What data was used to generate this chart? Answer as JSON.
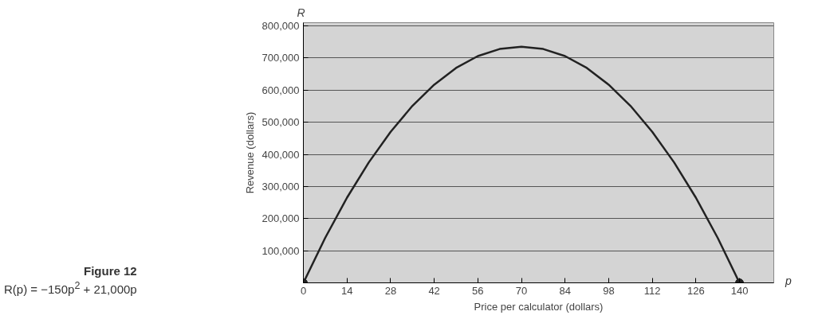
{
  "chart_data": {
    "type": "line",
    "xlabel": "Price per calculator (dollars)",
    "ylabel": "Revenue (dollars)",
    "annotations": [
      "R",
      "p",
      "Figure 12",
      "R(p) = −150p$^{2}$ + 21,000p"
    ],
    "x": [
      0,
      7,
      14,
      21,
      28,
      35,
      42,
      49,
      56,
      63,
      70,
      77,
      84,
      91,
      98,
      105,
      112,
      119,
      126,
      133,
      140
    ],
    "series": [
      {
        "color": "#222222",
        "marker": "none",
        "values": [
          0,
          140000,
          265000,
          375000,
          470000,
          551000,
          617000,
          669000,
          706000,
          728000,
          735000,
          728000,
          706000,
          669000,
          617000,
          551000,
          470000,
          375000,
          265000,
          140000,
          0
        ]
      },
      {
        "type": "scatter",
        "color": "#222222",
        "marker": "circle",
        "x": [
          0,
          140
        ],
        "values": [
          0,
          0
        ]
      }
    ],
    "xlim": [
      0,
      151
    ],
    "ylim": [
      0,
      810000
    ],
    "xticks": [
      0,
      14,
      28,
      42,
      56,
      70,
      84,
      98,
      112,
      126,
      140
    ],
    "yticks": [
      {
        "value": 100000,
        "label": "100,000"
      },
      {
        "value": 200000,
        "label": "200,000"
      },
      {
        "value": 300000,
        "label": "300,000"
      },
      {
        "value": 400000,
        "label": "400,000"
      },
      {
        "value": 500000,
        "label": "500,000"
      },
      {
        "value": 600000,
        "label": "600,000"
      },
      {
        "value": 700000,
        "label": "700,000"
      },
      {
        "value": 800000,
        "label": "800,000"
      }
    ],
    "grid": "y"
  }
}
